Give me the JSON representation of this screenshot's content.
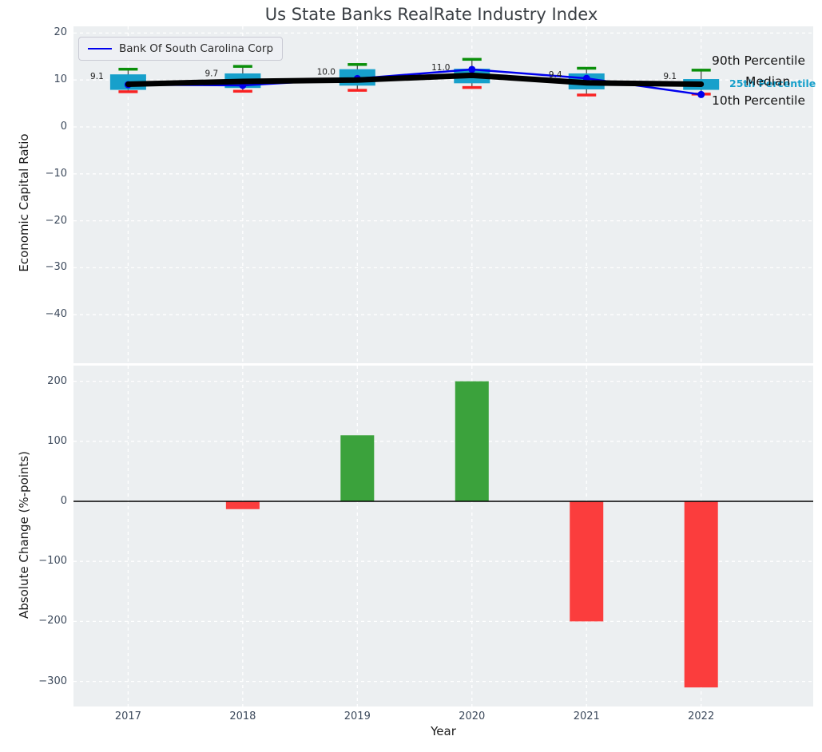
{
  "chart_data": [
    {
      "type": "box-line",
      "title": "Us State Banks RealRate Industry Index",
      "ylabel": "Economic Capital Ratio",
      "x": [
        "2017",
        "2018",
        "2019",
        "2020",
        "2021",
        "2022"
      ],
      "ylim": [
        -50.3,
        21.4
      ],
      "yticks": [
        "20",
        "10",
        "0",
        "−10",
        "−20",
        "−30",
        "−40"
      ],
      "ytick_values": [
        20,
        10,
        0,
        -10,
        -20,
        -30,
        -40
      ],
      "grid": "white-dashed",
      "legend": {
        "position": "upper-left",
        "label": "Bank Of South Carolina Corp"
      },
      "company_series": {
        "name": "Bank Of South Carolina Corp",
        "color": "#0000ee",
        "values": [
          9.0,
          8.85,
          10.3,
          12.25,
          10.35,
          6.9
        ]
      },
      "median_series": {
        "name": "Median",
        "color": "#000000",
        "values": [
          9.1,
          9.7,
          10.0,
          11.0,
          9.4,
          9.1
        ],
        "labels": [
          "9.1",
          "9.7",
          "10.0",
          "11.0",
          "9.4",
          "9.1"
        ]
      },
      "percentiles": {
        "p90": [
          12.3,
          12.9,
          13.3,
          14.4,
          12.5,
          12.1
        ],
        "p75": [
          11.2,
          11.4,
          12.3,
          12.4,
          11.4,
          10.2
        ],
        "p25": [
          7.9,
          8.3,
          8.8,
          9.3,
          8.0,
          7.9
        ],
        "p10": [
          7.5,
          7.6,
          7.8,
          8.4,
          6.8,
          7.0
        ]
      },
      "colors": {
        "box": "#17a0cb",
        "p90_cap": "#0a8f0a",
        "p10_cap": "#f92222",
        "whisker": "#4d4d4d",
        "median": "#000000",
        "company": "#0000ee",
        "plot_bg": "#eceff1"
      },
      "right_labels": [
        {
          "text": "90th Percentile",
          "color": "#111111"
        },
        {
          "text": "25th Percentile",
          "color": "#17a0cb"
        },
        {
          "text": "Median",
          "color": "#111111"
        },
        {
          "text": "10th Percentile",
          "color": "#111111"
        }
      ],
      "annotation_color": "#222222"
    },
    {
      "type": "bar",
      "ylabel": "Absolute Change (%-points)",
      "xlabel": "Year",
      "categories": [
        "2017",
        "2018",
        "2019",
        "2020",
        "2021",
        "2022"
      ],
      "values": [
        0,
        -13,
        110,
        200,
        -200,
        -310
      ],
      "yticks": [
        "200",
        "100",
        "0",
        "−100",
        "−200",
        "−300"
      ],
      "ytick_values": [
        200,
        100,
        0,
        -100,
        -200,
        -300
      ],
      "ylim": [
        -342,
        226
      ],
      "grid": "white-dashed",
      "colors": {
        "positive": "#3ba23c",
        "negative": "#fb3d3d",
        "zero_line": "#000000",
        "plot_bg": "#eceff1"
      }
    }
  ]
}
